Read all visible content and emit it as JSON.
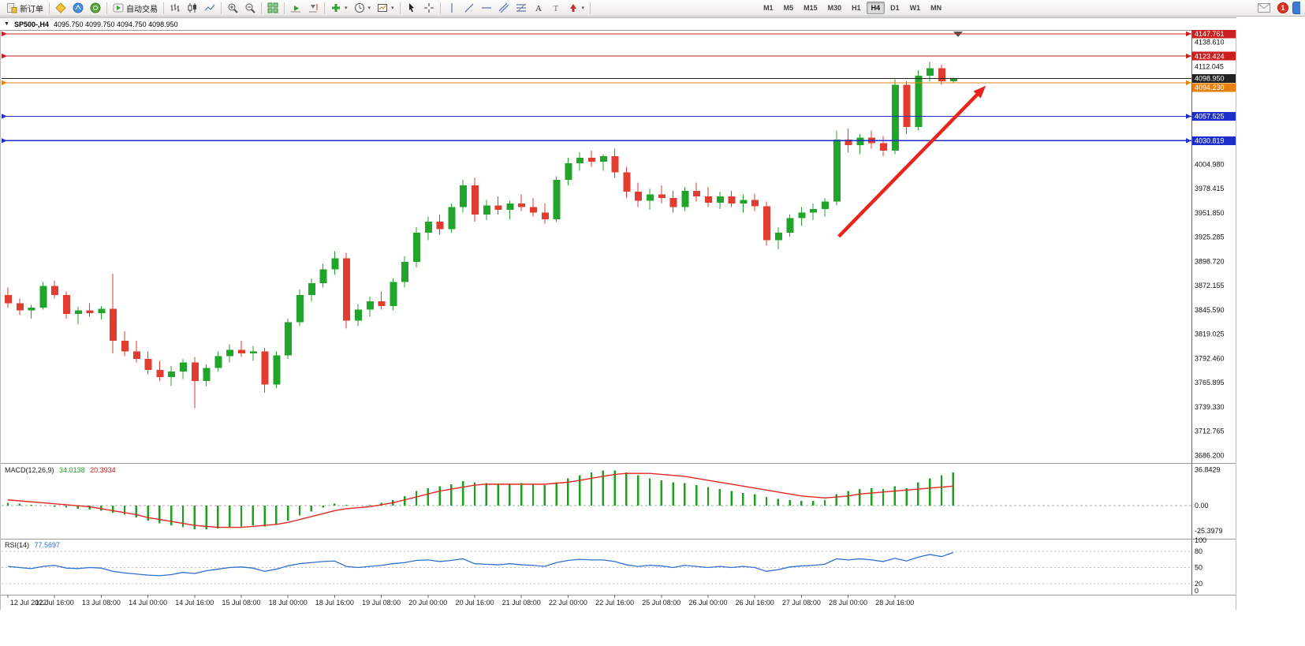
{
  "toolbar": {
    "groups": [
      {
        "name": "order-group",
        "items": [
          {
            "name": "new-order-button",
            "icon": "new-order",
            "label": "新订单"
          }
        ]
      },
      {
        "name": "apps-group",
        "items": [
          {
            "name": "metaeditor-button",
            "icon": "metaeditor"
          },
          {
            "name": "market-button",
            "icon": "market"
          },
          {
            "name": "community-button",
            "icon": "community"
          }
        ]
      },
      {
        "name": "autotrading-group",
        "items": [
          {
            "name": "autotrading-button",
            "icon": "autotrading",
            "label": "自动交易"
          }
        ]
      },
      {
        "name": "chart-type-group",
        "items": [
          {
            "name": "bar-chart-button",
            "icon": "bars"
          },
          {
            "name": "candlestick-chart-button",
            "icon": "candles"
          },
          {
            "name": "line-chart-button",
            "icon": "line"
          }
        ]
      },
      {
        "name": "zoom-group",
        "items": [
          {
            "name": "zoom-in-button",
            "icon": "zoom-in"
          },
          {
            "name": "zoom-out-button",
            "icon": "zoom-out"
          }
        ]
      },
      {
        "name": "window-group",
        "items": [
          {
            "name": "tile-windows-button",
            "icon": "tile"
          }
        ]
      },
      {
        "name": "scroll-group",
        "items": [
          {
            "name": "auto-scroll-button",
            "icon": "auto-scroll"
          },
          {
            "name": "chart-shift-button",
            "icon": "chart-shift"
          }
        ]
      },
      {
        "name": "insert-group",
        "items": [
          {
            "name": "indicators-button",
            "icon": "indicators",
            "caret": true
          },
          {
            "name": "periods-button",
            "icon": "clock",
            "caret": true
          },
          {
            "name": "templates-button",
            "icon": "template",
            "caret": true
          }
        ]
      },
      {
        "name": "pointer-group",
        "items": [
          {
            "name": "cursor-button",
            "icon": "cursor"
          },
          {
            "name": "crosshair-button",
            "icon": "crosshair"
          }
        ]
      },
      {
        "name": "draw-group",
        "items": [
          {
            "name": "vertical-line-button",
            "icon": "vline"
          },
          {
            "name": "trendline-button",
            "icon": "trendline"
          },
          {
            "name": "horizontal-line-button",
            "icon": "hline"
          },
          {
            "name": "channel-button",
            "icon": "channel"
          },
          {
            "name": "fibonacci-button",
            "icon": "fibo"
          },
          {
            "name": "text-button",
            "icon": "text"
          },
          {
            "name": "label-button",
            "icon": "label"
          },
          {
            "name": "arrows-button",
            "icon": "arrows",
            "caret": true
          }
        ]
      },
      {
        "name": "timeframe-group",
        "timeframes": true
      }
    ],
    "timeframes": [
      {
        "label": "M1"
      },
      {
        "label": "M5"
      },
      {
        "label": "M15"
      },
      {
        "label": "M30"
      },
      {
        "label": "H1"
      },
      {
        "label": "H4",
        "active": true
      },
      {
        "label": "D1"
      },
      {
        "label": "W1"
      },
      {
        "label": "MN"
      }
    ],
    "right_items": [
      {
        "name": "mail-button",
        "icon": "mail"
      },
      {
        "name": "notification-badge",
        "badge": "1"
      },
      {
        "name": "mobile-app-button",
        "icon": "bluecut"
      }
    ]
  },
  "window": {
    "dropdown_glyph": "▼",
    "symbol": "SP500-,H4",
    "ohlc": "4095.750 4099.750 4094.750 4098.950"
  },
  "chart_data": {
    "type": "candlestick",
    "symbol": "SP500-",
    "timeframe": "H4",
    "colors": {
      "up": "#21a42a",
      "down": "#e23b2f",
      "current_price_line": "#333333"
    },
    "price_axis": {
      "top_price": 4152,
      "bottom_price": 3678,
      "gridline_labels": [
        "4138.610",
        "4112.045",
        "4004.980",
        "3978.415",
        "3951.850",
        "3925.285",
        "3898.720",
        "3872.155",
        "3845.590",
        "3819.025",
        "3792.460",
        "3765.895",
        "3739.330",
        "3712.765",
        "3686.200"
      ]
    },
    "hlines": [
      {
        "price": 4147.761,
        "label": "4147.761",
        "color": "#cc1f1f",
        "markers": true
      },
      {
        "price": 4123.424,
        "label": "4123.424",
        "color": "#cc1f1f",
        "markers": true
      },
      {
        "price": 4098.95,
        "label": "4098.950",
        "color": "#222222",
        "markers": false,
        "current": true
      },
      {
        "price": 4094.23,
        "label": "4094.230",
        "color": "#e8820c",
        "markers": true
      },
      {
        "price": 4057.525,
        "label": "4057.525",
        "color": "#1f2fcc",
        "markers": true
      },
      {
        "price": 4030.819,
        "label": "4030.819",
        "color": "#1f2fcc",
        "markers": true
      }
    ],
    "time_labels": [
      "12 Jul 2022",
      "12 Jul 16:00",
      "13 Jul 08:00",
      "14 Jul 00:00",
      "14 Jul 16:00",
      "15 Jul 08:00",
      "18 Jul 00:00",
      "18 Jul 16:00",
      "19 Jul 08:00",
      "20 Jul 00:00",
      "20 Jul 16:00",
      "21 Jul 08:00",
      "22 Jul 00:00",
      "22 Jul 16:00",
      "25 Jul 08:00",
      "26 Jul 00:00",
      "26 Jul 16:00",
      "27 Jul 08:00",
      "28 Jul 00:00",
      "28 Jul 16:00"
    ],
    "candles": [
      [
        3862,
        3870,
        3848,
        3853
      ],
      [
        3853,
        3858,
        3840,
        3845
      ],
      [
        3845,
        3851,
        3836,
        3848
      ],
      [
        3848,
        3876,
        3846,
        3872
      ],
      [
        3872,
        3878,
        3858,
        3862
      ],
      [
        3862,
        3866,
        3836,
        3841
      ],
      [
        3841,
        3849,
        3830,
        3845
      ],
      [
        3845,
        3853,
        3838,
        3842
      ],
      [
        3842,
        3850,
        3835,
        3847
      ],
      [
        3847,
        3885,
        3798,
        3812
      ],
      [
        3812,
        3822,
        3795,
        3800
      ],
      [
        3800,
        3812,
        3788,
        3792
      ],
      [
        3792,
        3800,
        3775,
        3780
      ],
      [
        3780,
        3790,
        3768,
        3772
      ],
      [
        3772,
        3784,
        3762,
        3778
      ],
      [
        3778,
        3792,
        3770,
        3788
      ],
      [
        3788,
        3794,
        3738,
        3768
      ],
      [
        3768,
        3786,
        3762,
        3782
      ],
      [
        3782,
        3800,
        3778,
        3795
      ],
      [
        3795,
        3808,
        3788,
        3802
      ],
      [
        3802,
        3812,
        3794,
        3798
      ],
      [
        3798,
        3806,
        3790,
        3800
      ],
      [
        3800,
        3804,
        3755,
        3764
      ],
      [
        3764,
        3800,
        3760,
        3796
      ],
      [
        3796,
        3836,
        3792,
        3832
      ],
      [
        3832,
        3868,
        3828,
        3862
      ],
      [
        3862,
        3880,
        3855,
        3875
      ],
      [
        3875,
        3896,
        3870,
        3890
      ],
      [
        3890,
        3910,
        3884,
        3902
      ],
      [
        3902,
        3908,
        3825,
        3834
      ],
      [
        3834,
        3852,
        3828,
        3846
      ],
      [
        3846,
        3860,
        3838,
        3855
      ],
      [
        3855,
        3866,
        3846,
        3850
      ],
      [
        3850,
        3880,
        3845,
        3876
      ],
      [
        3876,
        3904,
        3870,
        3898
      ],
      [
        3898,
        3936,
        3892,
        3930
      ],
      [
        3930,
        3948,
        3922,
        3942
      ],
      [
        3942,
        3950,
        3928,
        3934
      ],
      [
        3934,
        3962,
        3930,
        3958
      ],
      [
        3958,
        3988,
        3952,
        3982
      ],
      [
        3982,
        3990,
        3942,
        3950
      ],
      [
        3950,
        3966,
        3944,
        3960
      ],
      [
        3960,
        3970,
        3950,
        3955
      ],
      [
        3955,
        3965,
        3945,
        3962
      ],
      [
        3962,
        3972,
        3954,
        3958
      ],
      [
        3958,
        3968,
        3948,
        3952
      ],
      [
        3952,
        3962,
        3940,
        3945
      ],
      [
        3945,
        3992,
        3942,
        3988
      ],
      [
        3988,
        4012,
        3982,
        4006
      ],
      [
        4006,
        4018,
        3998,
        4012
      ],
      [
        4012,
        4020,
        4002,
        4008
      ],
      [
        4008,
        4016,
        3998,
        4014
      ],
      [
        4014,
        4022,
        3990,
        3996
      ],
      [
        3996,
        4002,
        3968,
        3975
      ],
      [
        3975,
        3985,
        3958,
        3965
      ],
      [
        3965,
        3978,
        3955,
        3972
      ],
      [
        3972,
        3982,
        3962,
        3968
      ],
      [
        3968,
        3976,
        3952,
        3958
      ],
      [
        3958,
        3980,
        3954,
        3976
      ],
      [
        3976,
        3985,
        3964,
        3970
      ],
      [
        3970,
        3980,
        3958,
        3963
      ],
      [
        3963,
        3975,
        3956,
        3970
      ],
      [
        3970,
        3976,
        3958,
        3962
      ],
      [
        3962,
        3972,
        3952,
        3966
      ],
      [
        3966,
        3973,
        3954,
        3959
      ],
      [
        3959,
        3964,
        3916,
        3922
      ],
      [
        3922,
        3936,
        3912,
        3930
      ],
      [
        3930,
        3950,
        3926,
        3946
      ],
      [
        3946,
        3958,
        3938,
        3952
      ],
      [
        3952,
        3962,
        3944,
        3956
      ],
      [
        3956,
        3968,
        3948,
        3964
      ],
      [
        3964,
        4042,
        3960,
        4032
      ],
      [
        4032,
        4044,
        4018,
        4026
      ],
      [
        4026,
        4038,
        4016,
        4034
      ],
      [
        4034,
        4042,
        4022,
        4028
      ],
      [
        4028,
        4036,
        4014,
        4020
      ],
      [
        4020,
        4098,
        4016,
        4092
      ],
      [
        4092,
        4096,
        4038,
        4046
      ],
      [
        4046,
        4108,
        4042,
        4102
      ],
      [
        4102,
        4117,
        4096,
        4110
      ],
      [
        4110,
        4114,
        4092,
        4096
      ],
      [
        4095.75,
        4099.75,
        4094.75,
        4098.95
      ]
    ],
    "macd": {
      "title": "MACD(12,26,9)",
      "value": "34.0138",
      "signal_value": "20.3934",
      "axis_labels": [
        "36.8429",
        "0.00",
        "-25.3979"
      ],
      "range": [
        42,
        -32
      ],
      "histogram_color": "#18a31c",
      "signal_color": "#e02a1e",
      "histogram": [
        3,
        2,
        1,
        0,
        -1,
        -2,
        -3,
        -4,
        -5,
        -7,
        -9,
        -12,
        -15,
        -18,
        -20,
        -22,
        -24,
        -24,
        -23,
        -22,
        -21,
        -20,
        -21,
        -19,
        -15,
        -10,
        -6,
        -2,
        2,
        1,
        0,
        1,
        3,
        6,
        10,
        15,
        18,
        20,
        22,
        25,
        24,
        23,
        22,
        22,
        23,
        22,
        21,
        24,
        28,
        31,
        34,
        36,
        36,
        34,
        31,
        28,
        26,
        24,
        23,
        21,
        19,
        17,
        15,
        13,
        12,
        9,
        7,
        6,
        5,
        5,
        6,
        12,
        15,
        17,
        18,
        17,
        20,
        18,
        24,
        28,
        31,
        34
      ],
      "signal": [
        6,
        5,
        4,
        3,
        2,
        1,
        0,
        -1,
        -3,
        -5,
        -7,
        -9,
        -12,
        -14,
        -16,
        -18,
        -20,
        -21,
        -22,
        -22,
        -22,
        -21,
        -20,
        -19,
        -17,
        -14,
        -11,
        -8,
        -5,
        -3,
        -2,
        -1,
        1,
        3,
        6,
        9,
        12,
        15,
        17,
        19,
        21,
        22,
        22,
        22,
        22,
        22,
        22,
        23,
        24,
        26,
        28,
        30,
        32,
        33,
        33,
        33,
        32,
        31,
        30,
        28,
        26,
        24,
        22,
        20,
        18,
        16,
        14,
        12,
        10,
        9,
        8,
        9,
        10,
        12,
        13,
        14,
        15,
        16,
        17,
        18,
        19,
        20
      ]
    },
    "rsi": {
      "title": "RSI(14)",
      "value": "77.5697",
      "axis_labels": [
        "100",
        "80",
        "50",
        "20",
        "0"
      ],
      "levels": [
        80,
        50,
        20
      ],
      "range": [
        0,
        100
      ],
      "line_color": "#2f6fd0",
      "values": [
        52,
        50,
        48,
        52,
        54,
        49,
        48,
        50,
        49,
        43,
        40,
        38,
        36,
        35,
        37,
        41,
        39,
        44,
        47,
        50,
        51,
        49,
        43,
        47,
        53,
        57,
        59,
        61,
        62,
        52,
        50,
        52,
        54,
        57,
        59,
        63,
        64,
        61,
        63,
        66,
        57,
        56,
        55,
        57,
        55,
        54,
        52,
        59,
        63,
        65,
        64,
        64,
        61,
        55,
        52,
        54,
        53,
        50,
        54,
        52,
        50,
        52,
        50,
        52,
        50,
        43,
        46,
        51,
        53,
        54,
        56,
        66,
        64,
        66,
        64,
        61,
        67,
        62,
        69,
        74,
        70,
        77.57
      ],
      "overbought_level": 80,
      "oversold_level": 20
    },
    "trend_arrow": {
      "color": "#e8251d",
      "from_index": 71.2,
      "from_price": 3926,
      "to_index": 83.8,
      "to_price": 4091
    }
  }
}
